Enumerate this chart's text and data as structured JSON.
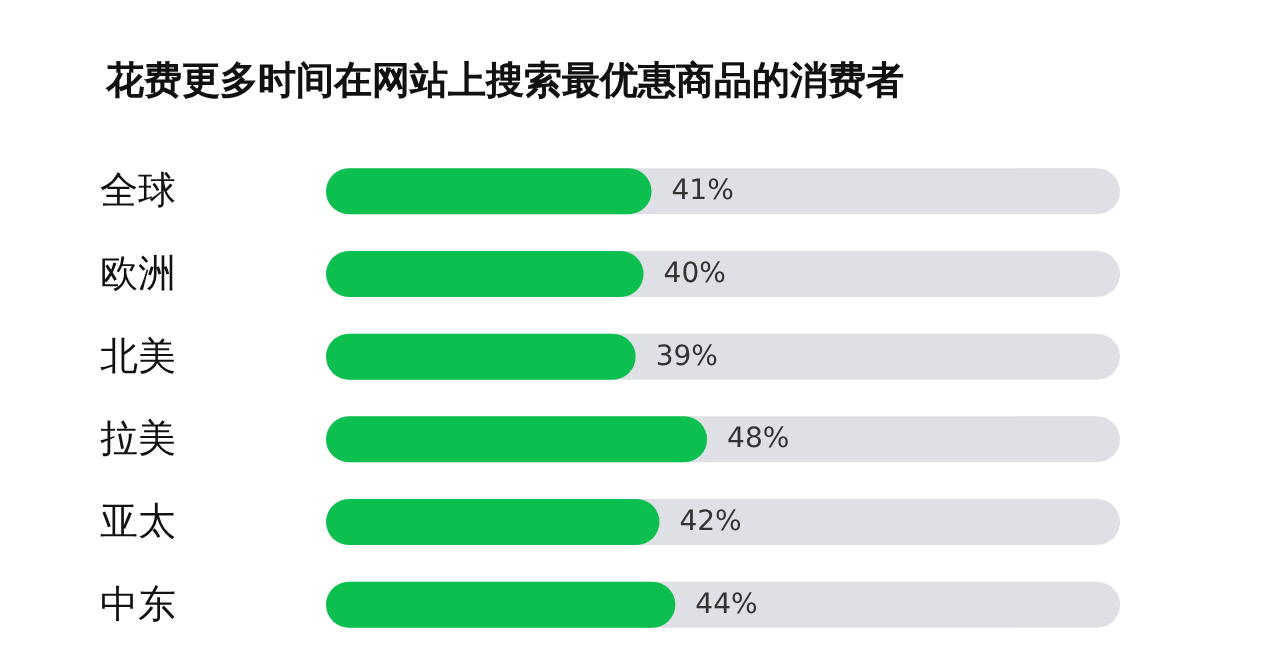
{
  "chart_data": {
    "type": "bar",
    "orientation": "horizontal",
    "title": "花费更多时间在网站上搜索最优惠商品的消费者",
    "categories": [
      "全球",
      "欧洲",
      "北美",
      "拉美",
      "亚太",
      "中东"
    ],
    "values": [
      41,
      40,
      39,
      48,
      42,
      44
    ],
    "value_labels": [
      "41%",
      "40%",
      "39%",
      "48%",
      "42%",
      "44%"
    ],
    "color": "#0dbf4f",
    "xlim": [
      0,
      100
    ],
    "tick_labels": "y"
  }
}
